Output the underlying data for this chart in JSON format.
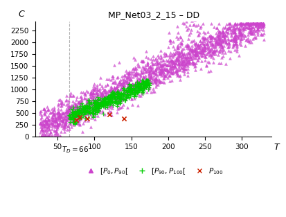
{
  "title": "MP_Net03_2_15 – DD",
  "xlabel": "T",
  "ylabel": "C",
  "td_line": 66,
  "td_label": "T_D = 66",
  "xlim": [
    20,
    340
  ],
  "ylim": [
    0,
    2450
  ],
  "xticks": [
    50,
    100,
    150,
    200,
    250,
    300
  ],
  "yticks": [
    0,
    250,
    500,
    750,
    1000,
    1250,
    1500,
    1750,
    2000,
    2250
  ],
  "color_p0_p90": "#CC44CC",
  "color_p90_p100": "#00CC00",
  "color_p100": "#CC2200",
  "seed": 42,
  "n_p0_p90": 2000,
  "n_p90_p100": 500,
  "n_p100": 5,
  "background": "#ffffff",
  "legend_items": [
    {
      "label": "[P₀,Pₐ₀[",
      "color": "#CC44CC",
      "marker": "^"
    },
    {
      "label": "[Pₐ₀,P₁₀₀[",
      "color": "#00CC00",
      "marker": "+"
    },
    {
      "label": "P₁₀₀",
      "color": "#CC2200",
      "marker": "x"
    }
  ]
}
